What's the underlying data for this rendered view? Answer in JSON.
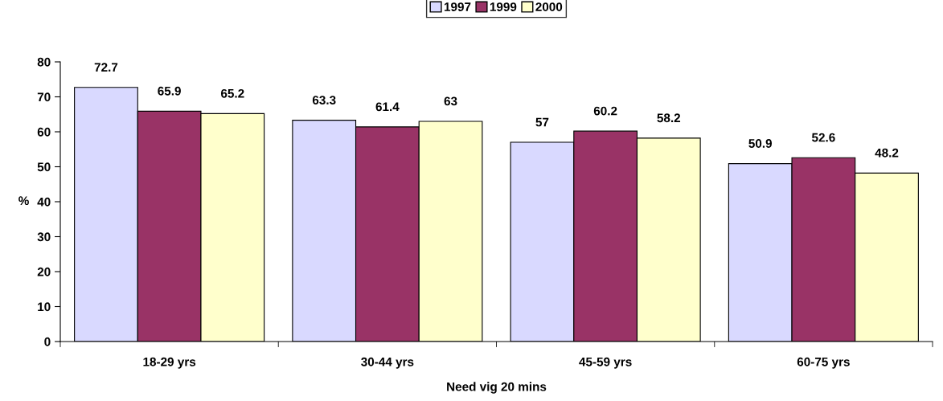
{
  "chart_data": {
    "type": "bar",
    "xlabel": "Need vig 20 mins",
    "ylabel": "%",
    "categories": [
      "18-29 yrs",
      "30-44 yrs",
      "45-59 yrs",
      "60-75 yrs"
    ],
    "series": [
      {
        "name": "1997",
        "color": "#d9d9ff",
        "values": [
          72.7,
          63.3,
          57,
          50.9
        ]
      },
      {
        "name": "1999",
        "color": "#993366",
        "values": [
          65.9,
          61.4,
          60.2,
          52.6
        ]
      },
      {
        "name": "2000",
        "color": "#ffffcc",
        "values": [
          65.2,
          63,
          58.2,
          48.2
        ]
      }
    ],
    "ylim": [
      0,
      80
    ],
    "yticks": [
      0,
      10,
      20,
      30,
      40,
      50,
      60,
      70,
      80
    ],
    "data_labels": true,
    "legend": "top",
    "grid": false
  }
}
